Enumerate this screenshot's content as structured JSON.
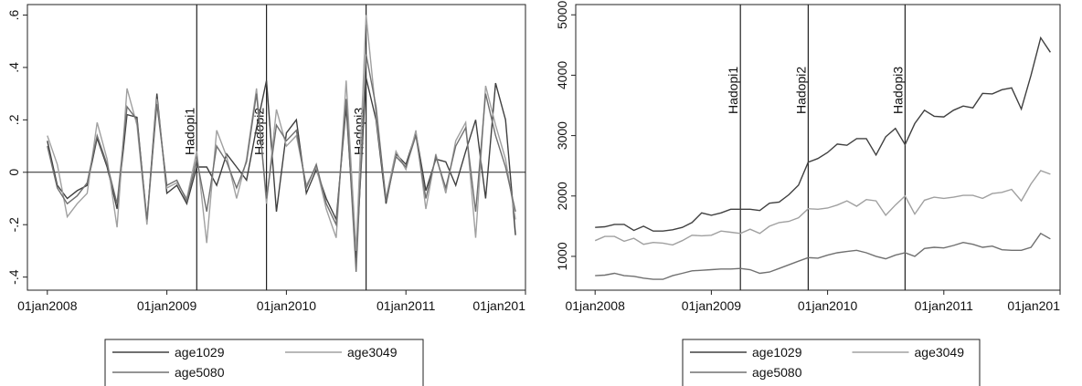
{
  "chart_data": [
    {
      "type": "line",
      "x": [
        "2008-01",
        "2008-02",
        "2008-03",
        "2008-04",
        "2008-05",
        "2008-06",
        "2008-07",
        "2008-08",
        "2008-09",
        "2008-10",
        "2008-11",
        "2008-12",
        "2009-01",
        "2009-02",
        "2009-03",
        "2009-04",
        "2009-05",
        "2009-06",
        "2009-07",
        "2009-08",
        "2009-09",
        "2009-10",
        "2009-11",
        "2009-12",
        "2010-01",
        "2010-02",
        "2010-03",
        "2010-04",
        "2010-05",
        "2010-06",
        "2010-07",
        "2010-08",
        "2010-09",
        "2010-10",
        "2010-11",
        "2010-12",
        "2011-01",
        "2011-02",
        "2011-03",
        "2011-04",
        "2011-05",
        "2011-06",
        "2011-07",
        "2011-08",
        "2011-09",
        "2011-10",
        "2011-11",
        "2011-12"
      ],
      "series": [
        {
          "name": "age1029",
          "color": "#404040",
          "values": [
            0.12,
            -0.05,
            -0.1,
            -0.07,
            -0.05,
            0.13,
            0.02,
            -0.14,
            0.22,
            0.21,
            -0.19,
            0.3,
            -0.08,
            -0.05,
            -0.12,
            0.02,
            0.02,
            -0.05,
            0.07,
            0.02,
            -0.03,
            0.17,
            0.35,
            -0.15,
            0.15,
            0.2,
            -0.08,
            0.01,
            -0.1,
            -0.18,
            0.25,
            -0.33,
            0.36,
            0.2,
            -0.12,
            0.07,
            0.03,
            0.15,
            -0.07,
            0.05,
            0.04,
            -0.05,
            0.08,
            0.2,
            -0.1,
            0.34,
            0.2,
            -0.24
          ]
        },
        {
          "name": "age3049",
          "color": "#a0a0a0",
          "values": [
            0.14,
            0.03,
            -0.17,
            -0.12,
            -0.08,
            0.19,
            0.05,
            -0.21,
            0.32,
            0.18,
            -0.2,
            0.28,
            -0.06,
            -0.04,
            -0.1,
            0.08,
            -0.27,
            0.16,
            0.06,
            -0.1,
            0.05,
            0.32,
            -0.12,
            0.24,
            0.1,
            0.14,
            -0.05,
            0.02,
            -0.14,
            -0.25,
            0.35,
            -0.3,
            0.6,
            0.22,
            -0.1,
            0.08,
            0.01,
            0.16,
            -0.14,
            0.07,
            -0.08,
            0.12,
            0.19,
            -0.25,
            0.33,
            0.18,
            0.05,
            -0.18
          ]
        },
        {
          "name": "age5080",
          "color": "#707070",
          "values": [
            0.1,
            -0.06,
            -0.12,
            -0.09,
            -0.04,
            0.14,
            0.03,
            -0.12,
            0.25,
            0.2,
            -0.18,
            0.26,
            -0.05,
            -0.03,
            -0.11,
            0.05,
            -0.15,
            0.1,
            0.04,
            -0.06,
            0.04,
            0.3,
            -0.1,
            0.18,
            0.12,
            0.16,
            -0.06,
            0.03,
            -0.12,
            -0.2,
            0.28,
            -0.38,
            0.45,
            0.25,
            -0.11,
            0.06,
            0.02,
            0.14,
            -0.1,
            0.06,
            -0.06,
            0.1,
            0.17,
            -0.15,
            0.3,
            0.14,
            0.02,
            -0.15
          ]
        }
      ],
      "xlim": [
        "2007-11",
        "2012-01"
      ],
      "xticks": [
        {
          "value": "2008-01",
          "label": "01jan2008"
        },
        {
          "value": "2009-01",
          "label": "01jan2009"
        },
        {
          "value": "2010-01",
          "label": "01jan2010"
        },
        {
          "value": "2011-01",
          "label": "01jan2011"
        },
        {
          "value": "2012-01",
          "label": "01jan201"
        }
      ],
      "ylim": [
        -0.45,
        0.64
      ],
      "yticks": [
        {
          "value": -0.4,
          "label": "-.4"
        },
        {
          "value": -0.2,
          "label": "-.2"
        },
        0,
        {
          "value": 0.2,
          "label": ".2"
        },
        {
          "value": 0.4,
          "label": ".4"
        },
        {
          "value": 0.6,
          "label": ".6"
        }
      ],
      "hline": 0,
      "vlines": [
        {
          "x": "2009-04",
          "label": "Hadopi1"
        },
        {
          "x": "2009-11",
          "label": "Hadopi2"
        },
        {
          "x": "2010-09",
          "label": "Hadopi3"
        }
      ],
      "legend": "bottom"
    },
    {
      "type": "line",
      "x": [
        "2008-01",
        "2008-02",
        "2008-03",
        "2008-04",
        "2008-05",
        "2008-06",
        "2008-07",
        "2008-08",
        "2008-09",
        "2008-10",
        "2008-11",
        "2008-12",
        "2009-01",
        "2009-02",
        "2009-03",
        "2009-04",
        "2009-05",
        "2009-06",
        "2009-07",
        "2009-08",
        "2009-09",
        "2009-10",
        "2009-11",
        "2009-12",
        "2010-01",
        "2010-02",
        "2010-03",
        "2010-04",
        "2010-05",
        "2010-06",
        "2010-07",
        "2010-08",
        "2010-09",
        "2010-10",
        "2010-11",
        "2010-12",
        "2011-01",
        "2011-02",
        "2011-03",
        "2011-04",
        "2011-05",
        "2011-06",
        "2011-07",
        "2011-08",
        "2011-09",
        "2011-10",
        "2011-11",
        "2011-12"
      ],
      "series": [
        {
          "name": "age1029",
          "color": "#404040",
          "values": [
            1480,
            1490,
            1530,
            1530,
            1430,
            1500,
            1420,
            1420,
            1440,
            1480,
            1560,
            1720,
            1680,
            1720,
            1780,
            1780,
            1780,
            1760,
            1880,
            1900,
            2020,
            2180,
            2560,
            2620,
            2720,
            2860,
            2840,
            2950,
            2950,
            2680,
            2980,
            3120,
            2850,
            3200,
            3420,
            3320,
            3310,
            3420,
            3490,
            3460,
            3700,
            3690,
            3760,
            3790,
            3440,
            4000,
            4620,
            4380
          ]
        },
        {
          "name": "age3049",
          "color": "#a0a0a0",
          "values": [
            1260,
            1330,
            1330,
            1250,
            1300,
            1200,
            1230,
            1220,
            1190,
            1260,
            1350,
            1340,
            1350,
            1420,
            1400,
            1380,
            1450,
            1380,
            1500,
            1560,
            1580,
            1640,
            1790,
            1780,
            1800,
            1850,
            1920,
            1830,
            1940,
            1920,
            1680,
            1850,
            2000,
            1700,
            1930,
            1980,
            1960,
            1980,
            2010,
            2010,
            1960,
            2040,
            2060,
            2110,
            1920,
            2200,
            2420,
            2360
          ]
        },
        {
          "name": "age5080",
          "color": "#707070",
          "values": [
            680,
            690,
            720,
            680,
            670,
            640,
            620,
            620,
            680,
            720,
            760,
            770,
            780,
            790,
            790,
            800,
            780,
            720,
            740,
            800,
            860,
            920,
            980,
            970,
            1020,
            1060,
            1080,
            1100,
            1060,
            1000,
            960,
            1020,
            1060,
            1000,
            1130,
            1150,
            1140,
            1180,
            1230,
            1200,
            1150,
            1170,
            1110,
            1100,
            1100,
            1150,
            1380,
            1290
          ]
        }
      ],
      "xlim": [
        "2007-11",
        "2012-01"
      ],
      "xticks": [
        {
          "value": "2008-01",
          "label": "01jan2008"
        },
        {
          "value": "2009-01",
          "label": "01jan2009"
        },
        {
          "value": "2010-01",
          "label": "01jan2010"
        },
        {
          "value": "2011-01",
          "label": "01jan2011"
        },
        {
          "value": "2012-01",
          "label": "01jan201"
        }
      ],
      "ylim": [
        440,
        5170
      ],
      "yticks": [
        1000,
        2000,
        3000,
        4000,
        5000
      ],
      "vlines": [
        {
          "x": "2009-04",
          "label": "Hadopi1"
        },
        {
          "x": "2009-11",
          "label": "Hadopi2"
        },
        {
          "x": "2010-09",
          "label": "Hadopi3"
        }
      ],
      "legend": "bottom"
    }
  ]
}
